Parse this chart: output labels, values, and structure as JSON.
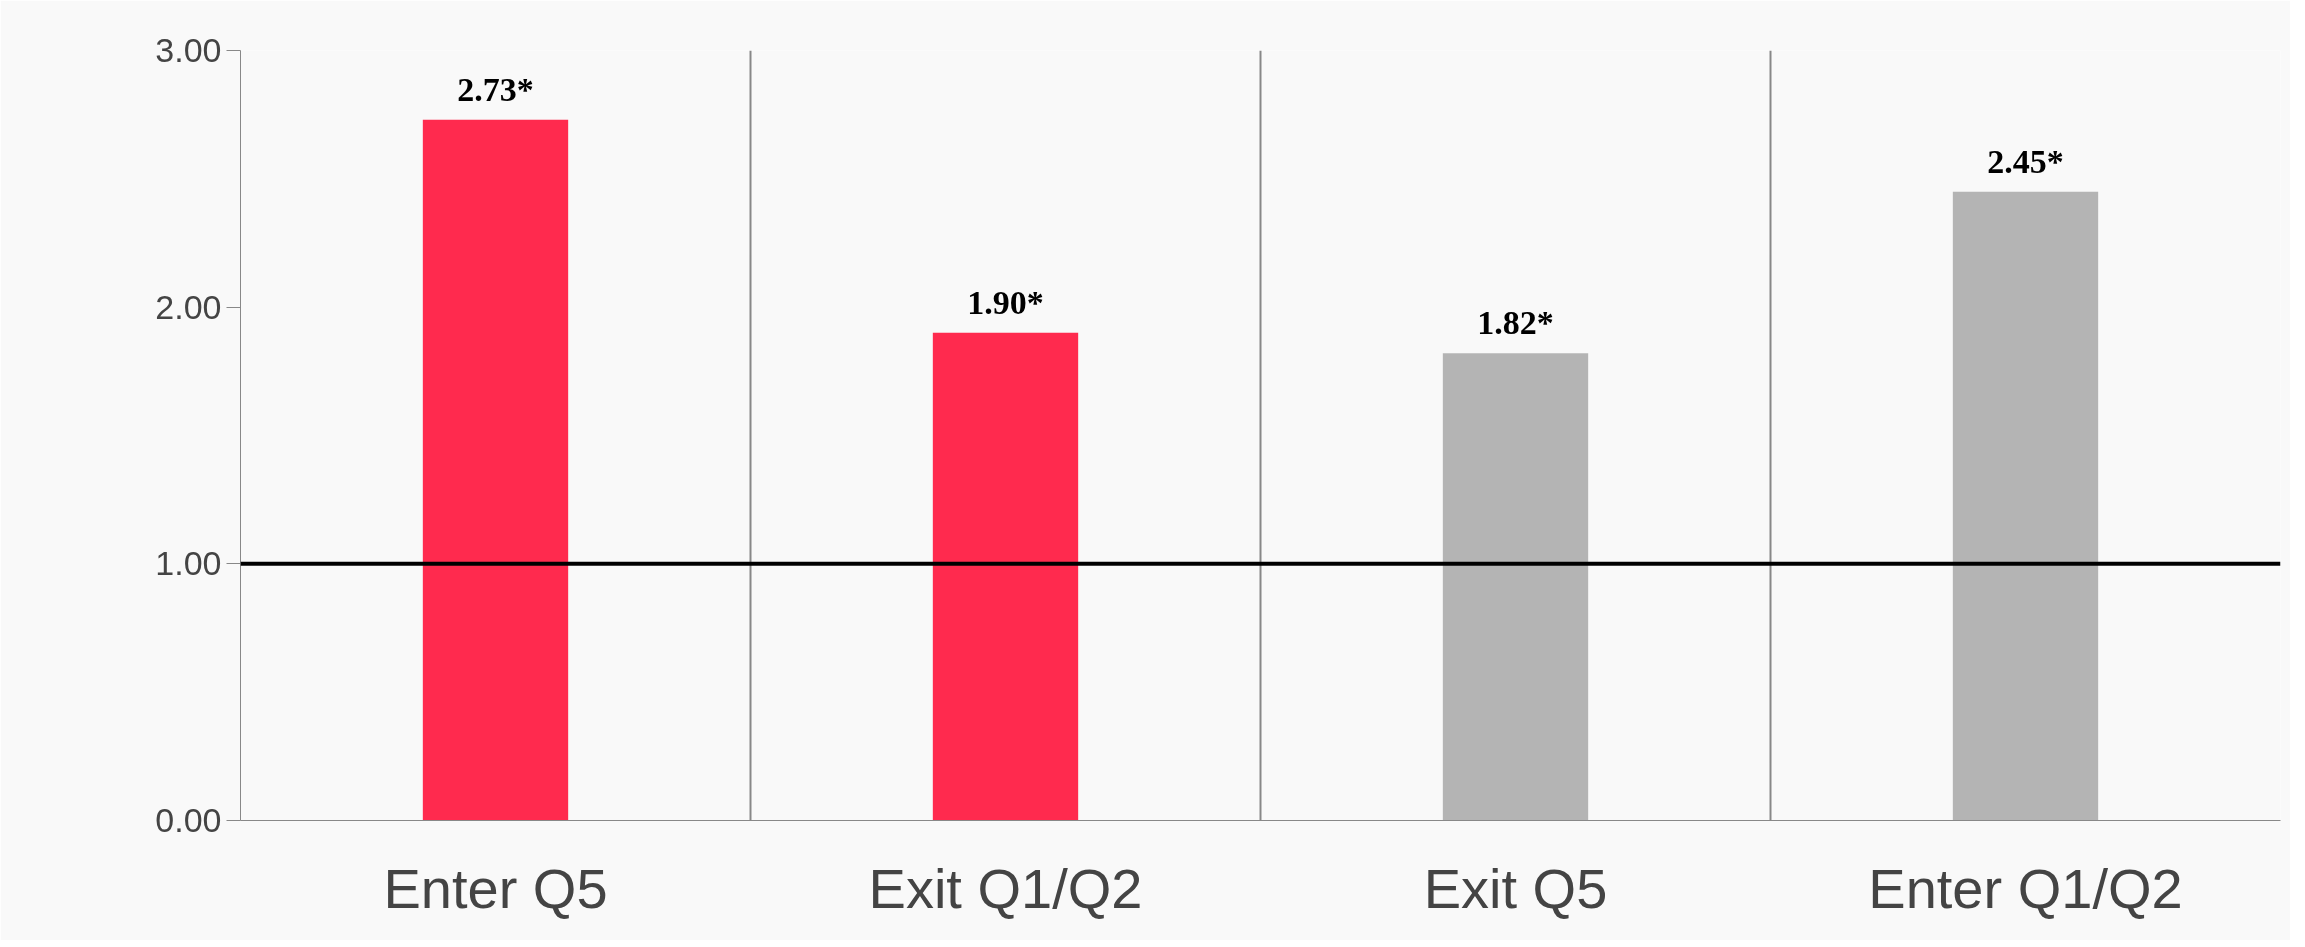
{
  "chart_data": {
    "type": "bar",
    "categories": [
      "Enter Q5",
      "Exit Q1/Q2",
      "Exit Q5",
      "Enter Q1/Q2"
    ],
    "values": [
      2.73,
      1.9,
      1.82,
      2.45
    ],
    "colors": [
      "#ff2a4e",
      "#ff2a4e",
      "#b4b4b4",
      "#b4b4b4"
    ],
    "value_labels": [
      "2.73*",
      "1.90*",
      "1.82*",
      "2.45*"
    ],
    "ylim": [
      0,
      3
    ],
    "yticks": [
      {
        "value": 0,
        "label": "0.00"
      },
      {
        "value": 1,
        "label": "1.00"
      },
      {
        "value": 2,
        "label": "2.00"
      },
      {
        "value": 3,
        "label": "3.00"
      }
    ],
    "ref_lines": [
      {
        "axis": "y",
        "value": 1,
        "label": null,
        "color": "#000000"
      }
    ],
    "grid": "x"
  }
}
